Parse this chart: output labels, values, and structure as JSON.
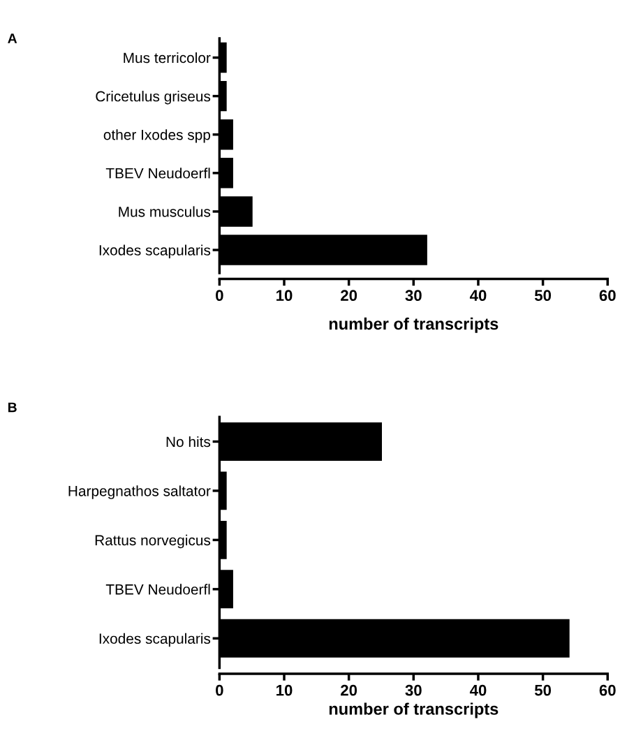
{
  "chart_data": [
    {
      "type": "bar",
      "orientation": "horizontal",
      "title": "A",
      "xlabel": "number of transcripts",
      "categories": [
        "Mus terricolor",
        "Cricetulus griseus",
        "other Ixodes spp",
        "TBEV Neudoerfl",
        "Mus musculus",
        "Ixodes scapularis"
      ],
      "values": [
        1,
        1,
        2,
        2,
        5,
        32
      ],
      "color": "#000000",
      "xlim": [
        0,
        60
      ],
      "xticks": [
        0,
        10,
        20,
        30,
        40,
        50,
        60
      ],
      "grid": false
    },
    {
      "type": "bar",
      "orientation": "horizontal",
      "title": "B",
      "xlabel": "number of transcripts",
      "categories": [
        "No hits",
        "Harpegnathos saltator",
        "Rattus norvegicus",
        "TBEV Neudoerfl",
        "Ixodes scapularis"
      ],
      "values": [
        25,
        1,
        1,
        2,
        54
      ],
      "color": "#000000",
      "xlim": [
        0,
        60
      ],
      "xticks": [
        0,
        10,
        20,
        30,
        40,
        50,
        60
      ],
      "grid": false
    }
  ]
}
